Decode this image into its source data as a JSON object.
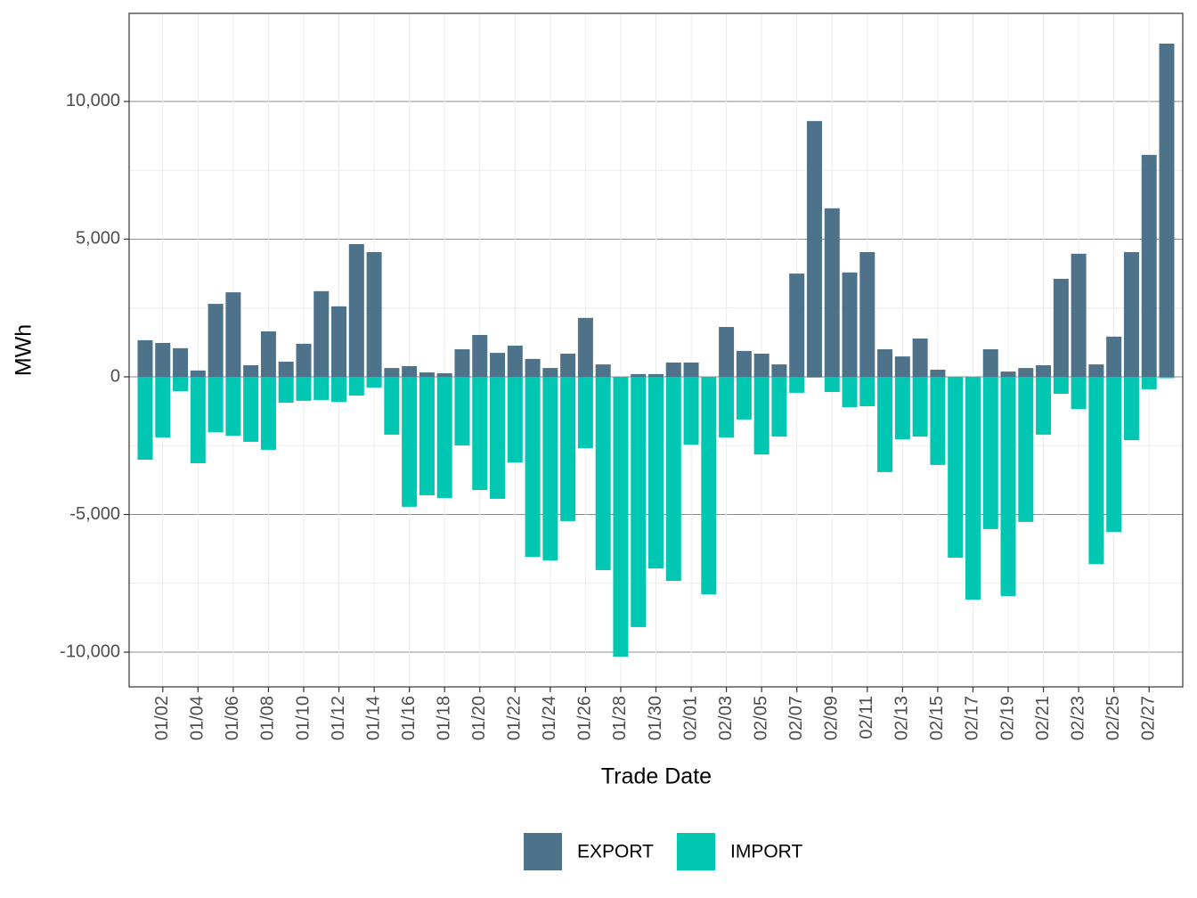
{
  "chart_data": {
    "type": "bar",
    "xlabel": "Trade Date",
    "ylabel": "MWh",
    "categories": [
      null,
      "01/02",
      null,
      "01/04",
      null,
      "01/06",
      null,
      "01/08",
      null,
      "01/10",
      null,
      "01/12",
      null,
      "01/14",
      null,
      "01/16",
      null,
      "01/18",
      null,
      "01/20",
      null,
      "01/22",
      null,
      "01/24",
      null,
      "01/26",
      null,
      "01/28",
      null,
      "01/30",
      null,
      "02/01",
      null,
      "02/03",
      null,
      "02/05",
      null,
      "02/07",
      null,
      "02/09",
      null,
      "02/11",
      null,
      "02/13",
      null,
      "02/15",
      null,
      "02/17",
      null,
      "02/19",
      null,
      "02/21",
      null,
      "02/23",
      null,
      "02/25",
      null,
      "02/27",
      null
    ],
    "series": [
      {
        "name": "EXPORT",
        "color": "#4e7289",
        "values": [
          1330,
          1230,
          1040,
          230,
          2650,
          3070,
          420,
          1650,
          550,
          1200,
          3110,
          2560,
          4820,
          4530,
          320,
          390,
          160,
          130,
          1000,
          1520,
          870,
          1130,
          650,
          320,
          840,
          2140,
          450,
          0,
          100,
          100,
          520,
          520,
          0,
          1810,
          940,
          840,
          450,
          3750,
          9290,
          6120,
          3790,
          4530,
          1000,
          740,
          1390,
          260,
          0,
          0,
          1000,
          190,
          320,
          420,
          3560,
          4470,
          450,
          1460,
          4530,
          8060,
          12100
        ]
      },
      {
        "name": "IMPORT",
        "color": "#00c7b2",
        "values": [
          -3010,
          -2200,
          -520,
          -3140,
          -2010,
          -2140,
          -2360,
          -2650,
          -940,
          -870,
          -840,
          -910,
          -680,
          -390,
          -2100,
          -4720,
          -4300,
          -4400,
          -2490,
          -4110,
          -4430,
          -3110,
          -6540,
          -6670,
          -5240,
          -2590,
          -7020,
          -10160,
          -9090,
          -6960,
          -7410,
          -2460,
          -7900,
          -2200,
          -1550,
          -2820,
          -2170,
          -580,
          -30,
          -550,
          -1100,
          -1070,
          -3460,
          -2270,
          -2170,
          -3200,
          -6570,
          -8090,
          -5530,
          -7960,
          -5270,
          -2100,
          -615,
          -1170,
          -6800,
          -5630,
          -2300,
          -450,
          -50
        ]
      }
    ],
    "ylim": [
      -11260,
      13200
    ],
    "yticks": [
      {
        "value": -10000,
        "label": "-10,000"
      },
      {
        "value": -5000,
        "label": "-5,000"
      },
      0,
      {
        "value": 5000,
        "label": "5,000"
      },
      {
        "value": 10000,
        "label": "10,000"
      }
    ],
    "grid": true,
    "legend": "bottom"
  }
}
